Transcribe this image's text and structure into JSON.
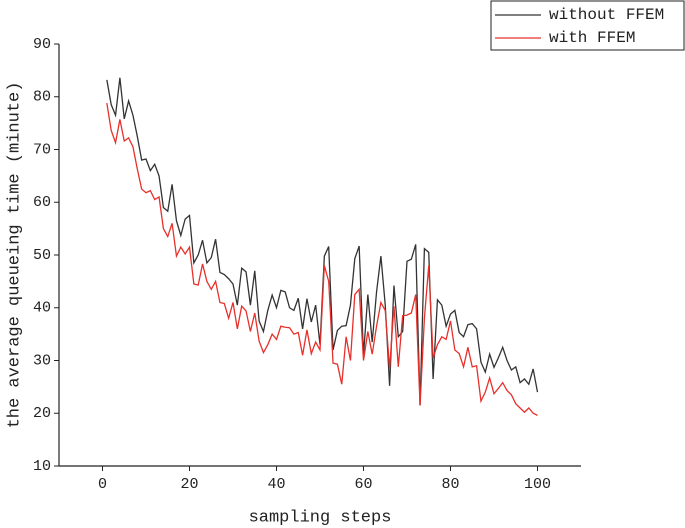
{
  "chart_data": {
    "type": "line",
    "xlabel": "sampling steps",
    "ylabel": "the average queueing time (minute)",
    "x": [
      1,
      2,
      3,
      4,
      5,
      6,
      7,
      8,
      9,
      10,
      11,
      12,
      13,
      14,
      15,
      16,
      17,
      18,
      19,
      20,
      21,
      22,
      23,
      24,
      25,
      26,
      27,
      28,
      29,
      30,
      31,
      32,
      33,
      34,
      35,
      36,
      37,
      38,
      39,
      40,
      41,
      42,
      43,
      44,
      45,
      46,
      47,
      48,
      49,
      50,
      51,
      52,
      53,
      54,
      55,
      56,
      57,
      58,
      59,
      60,
      61,
      62,
      63,
      64,
      65,
      66,
      67,
      68,
      69,
      70,
      71,
      72,
      73,
      74,
      75,
      76,
      77,
      78,
      79,
      80,
      81,
      82,
      83,
      84,
      85,
      86,
      87,
      88,
      89,
      90,
      91,
      92,
      93,
      94,
      95,
      96,
      97,
      98,
      99,
      100
    ],
    "series": [
      {
        "name": "without FFEM",
        "color": "#333333",
        "values": [
          83.2,
          78.5,
          76.5,
          83.6,
          75.8,
          79.2,
          76.5,
          72.5,
          68,
          68.2,
          66,
          67.2,
          65,
          59,
          58.3,
          63.4,
          56.5,
          53.7,
          56.8,
          57.5,
          48.5,
          50,
          52.8,
          48.5,
          49.5,
          53,
          46.7,
          46.3,
          45.5,
          44.5,
          40.5,
          47.5,
          46.8,
          40.5,
          47,
          37.5,
          35.5,
          39.5,
          42.4,
          40,
          43.3,
          43,
          40,
          39.5,
          41.8,
          36,
          41.7,
          37.3,
          40.5,
          33,
          49.8,
          51.6,
          32,
          35.7,
          36.5,
          36.6,
          40.5,
          49.3,
          51.7,
          31,
          42.5,
          33.5,
          43,
          49.8,
          40.5,
          25.2,
          44.2,
          34.5,
          35.5,
          48.8,
          49.2,
          52,
          21.5,
          51.2,
          50.5,
          26.5,
          41.5,
          40.5,
          36.5,
          38.8,
          39.5,
          35.3,
          34.5,
          36.8,
          37,
          36,
          29.7,
          27.8,
          31.2,
          28.7,
          30.5,
          32.5,
          30,
          28.2,
          28.8,
          25.8,
          26.5,
          25.5,
          28.4,
          24
        ]
      },
      {
        "name": "with FFEM",
        "color": "#e8302a",
        "values": [
          78.8,
          73.6,
          71.3,
          75.7,
          71.6,
          72.2,
          70.5,
          66.3,
          62.5,
          61.8,
          62.2,
          60.5,
          61,
          55,
          53.5,
          56,
          49.8,
          51.5,
          50.2,
          51.5,
          44.5,
          44.3,
          48.3,
          45,
          43.5,
          45,
          41,
          40.8,
          38,
          41,
          36,
          40.3,
          39.4,
          35.5,
          39,
          33.7,
          31.5,
          33,
          35,
          34,
          36.5,
          36.3,
          36.2,
          35,
          35.3,
          31,
          35.8,
          31.3,
          33.5,
          32,
          48,
          45,
          29.5,
          29.3,
          25.5,
          34.5,
          30,
          42.5,
          43.5,
          30,
          35.5,
          31.2,
          36.5,
          41,
          39.5,
          28.5,
          40.3,
          28.8,
          38.5,
          38.6,
          39,
          42.5,
          21.5,
          38,
          48,
          30.5,
          33,
          34.5,
          34,
          37.5,
          32,
          31.3,
          28.8,
          32.5,
          28.8,
          29,
          22.3,
          24,
          26.7,
          23.7,
          24.7,
          25.8,
          24.3,
          23.5,
          21.8,
          21,
          20.2,
          21,
          20,
          19.6
        ]
      }
    ],
    "xlim": [
      -10,
      110
    ],
    "xticks": [
      0,
      20,
      40,
      60,
      80,
      100
    ],
    "ylim": [
      10,
      90
    ],
    "yticks": [
      10,
      20,
      30,
      40,
      50,
      60,
      70,
      80,
      90
    ],
    "legend": "upper right"
  }
}
